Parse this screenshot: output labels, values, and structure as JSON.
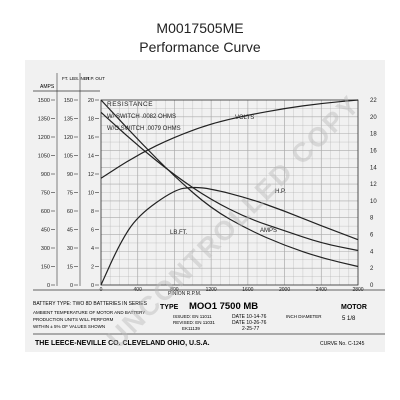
{
  "page": {
    "title": "M0017505ME",
    "subtitle": "Performance Curve",
    "watermark": "UNCONTROLLED COPY"
  },
  "chart_data": {
    "type": "line",
    "x_axis": {
      "label": "PINION R.P.M.",
      "ticks": [
        "0",
        "400",
        "800",
        "1200",
        "1600",
        "2000",
        "2400",
        "2800"
      ],
      "range": [
        0,
        2800
      ]
    },
    "left_axes": [
      {
        "label": "AMPS",
        "ticks": [
          "0",
          "150",
          "300",
          "450",
          "600",
          "750",
          "900",
          "1050",
          "1200",
          "1350",
          "1500"
        ],
        "range": [
          0,
          1500
        ]
      },
      {
        "label": "FT. LBS. NET",
        "ticks": [
          "0",
          "15",
          "30",
          "45",
          "60",
          "75",
          "90",
          "105",
          "120",
          "135",
          "150"
        ],
        "range": [
          0,
          150
        ]
      },
      {
        "label": "H.P. OUT",
        "ticks": [
          "0",
          "2",
          "4",
          "6",
          "8",
          "10",
          "12",
          "14",
          "16",
          "18",
          "20"
        ],
        "range": [
          0,
          20
        ]
      }
    ],
    "right_axis": {
      "label": "",
      "ticks": [
        "0",
        "2",
        "4",
        "6",
        "8",
        "10",
        "12",
        "14",
        "16",
        "18",
        "20",
        "22"
      ],
      "range": [
        0,
        22
      ]
    },
    "right_axis_tick_display": [
      "0",
      "2",
      "4",
      "6",
      "8",
      "10",
      "12",
      "14",
      "16",
      "18",
      "20",
      "22"
    ],
    "grid": true,
    "resistance": {
      "heading": "RESISTANCE",
      "lines": [
        "W/ SWITCH .0082 OHMS",
        "W/O SWITCH .0079 OHMS"
      ]
    },
    "series": [
      {
        "name": "VOLTS",
        "axis": "right",
        "x": [
          0,
          400,
          800,
          1200,
          1600,
          2000,
          2400,
          2800
        ],
        "y": [
          12.7,
          15.5,
          17.6,
          19.2,
          20.2,
          21.0,
          21.6,
          22.0
        ]
      },
      {
        "name": "AMPS",
        "axis": "AMPS",
        "x": [
          0,
          400,
          800,
          1200,
          1600,
          2000,
          2400,
          2800
        ],
        "y": [
          1400,
          1130,
          890,
          690,
          540,
          440,
          340,
          280
        ]
      },
      {
        "name": "LB.FT.",
        "axis": "FT. LBS. NET",
        "x": [
          0,
          400,
          800,
          1200,
          1600,
          2000,
          2400,
          2800
        ],
        "y": [
          150,
          118,
          88,
          62,
          45,
          32,
          22,
          15
        ]
      },
      {
        "name": "H.P.",
        "axis": "H.P. OUT",
        "x": [
          0,
          200,
          400,
          800,
          1000,
          1200,
          1600,
          2000,
          2400,
          2800
        ],
        "y": [
          0,
          4.4,
          7.5,
          10.3,
          10.6,
          10.4,
          9.4,
          8.0,
          6.4,
          4.9
        ]
      }
    ],
    "footer": {
      "battery": "BATTERY TYPE: TWO 8D BATTERIES IN SERIES",
      "ambient": "AMBIENT TEMPERATURE OF MOTOR AND BATTERY",
      "production": "PRODUCTION UNITS WILL PERFORM",
      "tolerance": "WITHIN ± 5% OF VALUES SHOWN",
      "type_label": "TYPE",
      "model": "MOO1 7500 MB",
      "motor": "MOTOR",
      "issued": "ISSUED: EN 11011",
      "revised": "REVISED: EN 11031",
      "ekn": "EK11139",
      "date1": "DATE 10-14-76",
      "date2": "DATE 10-26-76",
      "date3": "2-25-77",
      "inch_diameter": "INCH DIAMETER",
      "diameter_value": "5 1/8",
      "company": "THE LEECE-NEVILLE CO. CLEVELAND OHIO, U.S.A.",
      "curve_no": "CURVE No. C-1245"
    }
  }
}
